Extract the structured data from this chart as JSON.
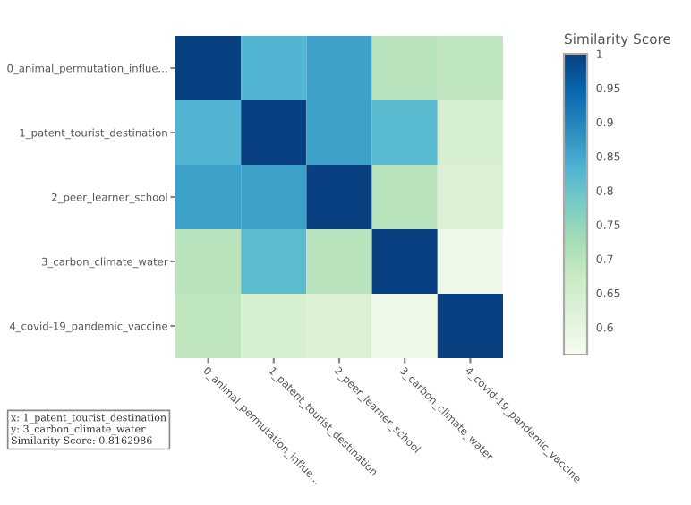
{
  "chart_data": {
    "type": "heatmap",
    "clabel": "Similarity Score",
    "categories": [
      "0_animal_permutation_influe...",
      "1_patent_tourist_destination",
      "2_peer_learner_school",
      "3_carbon_climate_water",
      "4_covid-19_pandemic_vaccine"
    ],
    "y_categories": [
      "0_animal_permutation_influe...",
      "1_patent_tourist_destination",
      "2_peer_learner_school",
      "3_carbon_climate_water",
      "4_covid-19_pandemic_vaccine"
    ],
    "cells": [
      [
        1,
        0.83,
        0.86,
        0.7,
        0.69
      ],
      [
        0.83,
        1,
        0.86,
        0.82,
        0.64
      ],
      [
        0.86,
        0.86,
        1,
        0.7,
        0.63
      ],
      [
        0.7,
        0.8162986,
        0.7,
        1,
        0.58
      ],
      [
        0.69,
        0.64,
        0.63,
        0.58,
        1
      ]
    ],
    "clim": [
      0.56,
      1
    ],
    "cticks": [
      0.6,
      0.65,
      0.7,
      0.75,
      0.8,
      0.85,
      0.9,
      0.95,
      1
    ],
    "annotations": [
      "x: 1_patent_tourist_destination\ny: 3_carbon_climate_water\nSimilarity Score: 0.8162986"
    ]
  }
}
